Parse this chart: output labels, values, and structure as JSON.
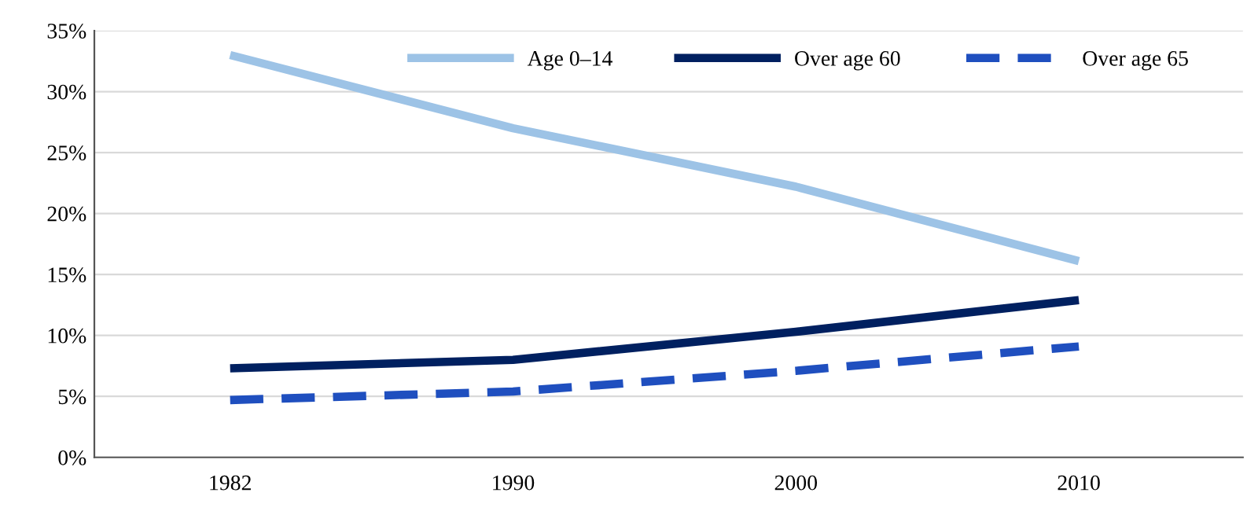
{
  "chart_data": {
    "type": "line",
    "categories": [
      "1982",
      "1990",
      "2000",
      "2010"
    ],
    "series": [
      {
        "name": "Age 0–14",
        "color": "#9dc3e6",
        "values": [
          33.0,
          27.0,
          22.2,
          16.1
        ],
        "line_style": "solid"
      },
      {
        "name": "Over age 60",
        "color": "#002060",
        "values": [
          7.3,
          8.0,
          10.3,
          12.9
        ],
        "line_style": "solid"
      },
      {
        "name": "Over age 65",
        "color": "#1f4fbf",
        "values": [
          4.7,
          5.4,
          7.1,
          9.1
        ],
        "line_style": "dashed"
      }
    ],
    "ylim": [
      0,
      35
    ],
    "yticks": [
      {
        "value": 0,
        "label": "0%"
      },
      {
        "value": 5,
        "label": "5%"
      },
      {
        "value": 10,
        "label": "10%"
      },
      {
        "value": 15,
        "label": "15%"
      },
      {
        "value": 20,
        "label": "20%"
      },
      {
        "value": 25,
        "label": "25%"
      },
      {
        "value": 30,
        "label": "30%"
      },
      {
        "value": 35,
        "label": "35%"
      }
    ],
    "grid": "y",
    "legend": "top right",
    "marker": "none"
  }
}
